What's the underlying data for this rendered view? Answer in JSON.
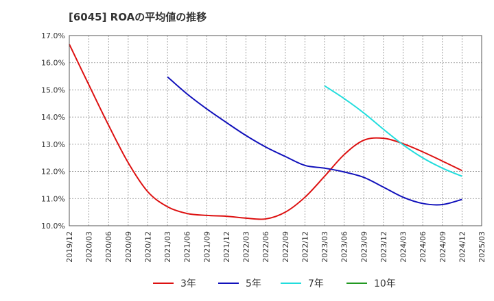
{
  "chart_data": {
    "type": "line",
    "title": "[6045]  ROAの平均値の推移",
    "xlabel": "",
    "ylabel": "",
    "ylim": [
      10.0,
      17.0
    ],
    "y_ticks": [
      "10.0%",
      "11.0%",
      "12.0%",
      "13.0%",
      "14.0%",
      "15.0%",
      "16.0%",
      "17.0%"
    ],
    "x_ticks": [
      "2019/12",
      "2020/03",
      "2020/06",
      "2020/09",
      "2020/12",
      "2021/03",
      "2021/06",
      "2021/09",
      "2021/12",
      "2022/03",
      "2022/06",
      "2022/09",
      "2022/12",
      "2023/03",
      "2023/06",
      "2023/09",
      "2023/12",
      "2024/03",
      "2024/06",
      "2024/09",
      "2024/12",
      "2025/03"
    ],
    "grid": true,
    "legend_position": "bottom",
    "series": [
      {
        "name": "3年",
        "color": "#dd1111",
        "x": [
          "2019/12",
          "2020/03",
          "2020/06",
          "2020/09",
          "2020/12",
          "2021/03",
          "2021/06",
          "2021/09",
          "2021/12",
          "2022/03",
          "2022/06",
          "2022/09",
          "2022/12",
          "2023/03",
          "2023/06",
          "2023/09",
          "2023/12",
          "2024/03",
          "2024/06",
          "2024/09",
          "2024/12"
        ],
        "values": [
          16.68,
          15.18,
          13.7,
          12.32,
          11.25,
          10.7,
          10.45,
          10.38,
          10.35,
          10.28,
          10.25,
          10.5,
          11.05,
          11.82,
          12.62,
          13.15,
          13.22,
          13.02,
          12.72,
          12.38,
          12.03
        ]
      },
      {
        "name": "5年",
        "color": "#1111bb",
        "x": [
          "2021/03",
          "2021/06",
          "2021/09",
          "2021/12",
          "2022/03",
          "2022/06",
          "2022/09",
          "2022/12",
          "2023/03",
          "2023/06",
          "2023/09",
          "2023/12",
          "2024/03",
          "2024/06",
          "2024/09",
          "2024/12"
        ],
        "values": [
          15.48,
          14.85,
          14.3,
          13.8,
          13.32,
          12.9,
          12.55,
          12.22,
          12.12,
          11.98,
          11.78,
          11.42,
          11.05,
          10.82,
          10.78,
          10.97
        ]
      },
      {
        "name": "7年",
        "color": "#22dddd",
        "x": [
          "2023/03",
          "2023/06",
          "2023/09",
          "2023/12",
          "2024/03",
          "2024/06",
          "2024/09",
          "2024/12"
        ],
        "values": [
          15.15,
          14.68,
          14.15,
          13.55,
          12.98,
          12.5,
          12.12,
          11.82
        ]
      },
      {
        "name": "10年",
        "color": "#229922",
        "x": [],
        "values": []
      }
    ]
  }
}
